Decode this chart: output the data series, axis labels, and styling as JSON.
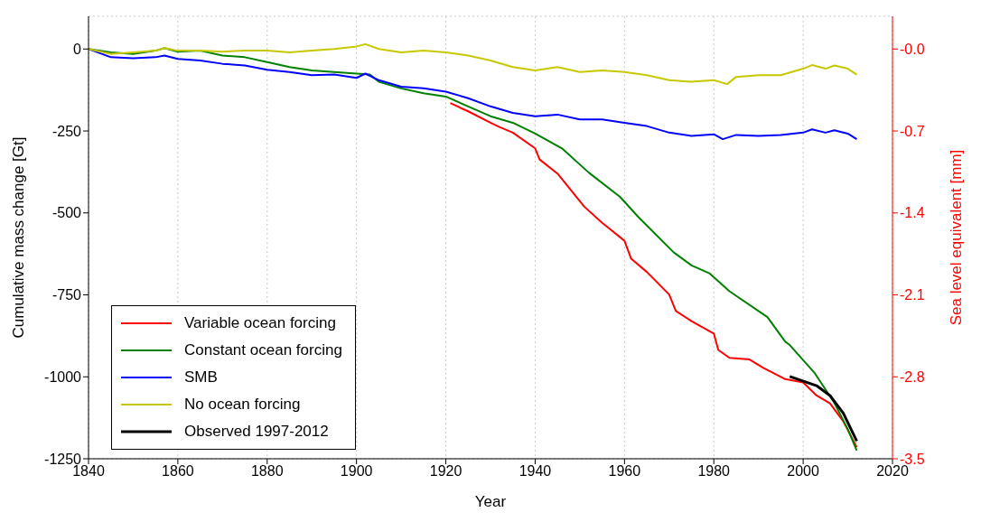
{
  "chart_data": {
    "type": "line",
    "xlabel": "Year",
    "ylabel": "Cumulative mass change [Gt]",
    "y2label": "Sea level equivalent [mm]",
    "xlim": [
      1840,
      2020
    ],
    "xticks": [
      1840,
      1860,
      1880,
      1900,
      1920,
      1940,
      1960,
      1980,
      2000,
      2020
    ],
    "ylim": [
      -1250,
      100
    ],
    "yticks": [
      -1250,
      -1000,
      -750,
      -500,
      -250,
      0
    ],
    "y2lim": [
      -3.5,
      0.28
    ],
    "y2ticks": [
      -3.5,
      -2.8,
      -2.1,
      -1.4,
      -0.7,
      {
        "value": 0,
        "label": "-0.0"
      }
    ],
    "grid": true,
    "legend": "bottom left",
    "line_style": "solid",
    "marker": "none",
    "series": [
      {
        "name": "Variable ocean forcing",
        "color": "#ff0000",
        "x": [
          1921,
          1925,
          1930,
          1932,
          1935,
          1940,
          1941,
          1945,
          1951,
          1955,
          1960,
          1961.5,
          1965,
          1970,
          1971.5,
          1975,
          1980,
          1981,
          1983.5,
          1988,
          1991,
          1996,
          2000,
          2003,
          2006,
          2009,
          2012
        ],
        "values": [
          -165,
          -190,
          -225,
          -238,
          -255,
          -303,
          -337,
          -380,
          -481,
          -530,
          -585,
          -640,
          -680,
          -749,
          -799,
          -830,
          -868,
          -918,
          -942,
          -947,
          -972,
          -1007,
          -1017,
          -1057,
          -1081,
          -1136,
          -1215
        ]
      },
      {
        "name": "Constant ocean forcing",
        "color": "#008000",
        "x": [
          1840,
          1845,
          1850,
          1855,
          1857,
          1860,
          1865,
          1870,
          1875,
          1880,
          1885,
          1890,
          1895,
          1900,
          1903,
          1905,
          1910,
          1915,
          1920,
          1925,
          1930,
          1935,
          1940,
          1946,
          1952,
          1959,
          1963,
          1971,
          1975,
          1979,
          1983.5,
          1992,
          1996,
          1997,
          2002.5,
          2007,
          2010,
          2012
        ],
        "values": [
          0,
          -10,
          -15,
          -5,
          3,
          -8,
          -5,
          -20,
          -25,
          -40,
          -55,
          -65,
          -70,
          -75,
          -78,
          -100,
          -120,
          -135,
          -145,
          -175,
          -205,
          -225,
          -258,
          -303,
          -377,
          -451,
          -511,
          -620,
          -660,
          -684,
          -739,
          -818,
          -893,
          -903,
          -987,
          -1080,
          -1160,
          -1225
        ]
      },
      {
        "name": "SMB",
        "color": "#0000ff",
        "x": [
          1840,
          1845,
          1850,
          1855,
          1857,
          1860,
          1865,
          1870,
          1875,
          1880,
          1885,
          1890,
          1895,
          1900,
          1902,
          1905,
          1910,
          1915,
          1920,
          1925,
          1930,
          1935,
          1940,
          1945,
          1950,
          1955,
          1960,
          1965,
          1970,
          1975,
          1980,
          1982,
          1985,
          1990,
          1995,
          2000,
          2002,
          2005,
          2007,
          2010,
          2012
        ],
        "values": [
          0,
          -25,
          -28,
          -25,
          -20,
          -30,
          -35,
          -45,
          -50,
          -63,
          -70,
          -80,
          -78,
          -88,
          -75,
          -95,
          -115,
          -120,
          -130,
          -150,
          -175,
          -195,
          -205,
          -200,
          -215,
          -215,
          -225,
          -235,
          -255,
          -265,
          -260,
          -275,
          -262,
          -265,
          -262,
          -255,
          -245,
          -255,
          -248,
          -258,
          -275
        ]
      },
      {
        "name": "No ocean forcing",
        "color": "#c8c800",
        "x": [
          1840,
          1845,
          1850,
          1855,
          1857,
          1860,
          1865,
          1870,
          1875,
          1880,
          1885,
          1890,
          1895,
          1900,
          1902,
          1905,
          1910,
          1915,
          1920,
          1925,
          1930,
          1935,
          1940,
          1945,
          1950,
          1955,
          1960,
          1965,
          1970,
          1975,
          1980,
          1983,
          1985,
          1990,
          1995,
          2000,
          2002,
          2005,
          2007,
          2010,
          2012
        ],
        "values": [
          0,
          -15,
          -10,
          -5,
          3,
          -5,
          -5,
          -8,
          -5,
          -5,
          -10,
          -5,
          0,
          8,
          15,
          0,
          -10,
          -5,
          -10,
          -20,
          -35,
          -55,
          -65,
          -55,
          -70,
          -65,
          -70,
          -80,
          -95,
          -100,
          -95,
          -107,
          -85,
          -80,
          -80,
          -60,
          -49,
          -60,
          -50,
          -60,
          -78
        ]
      },
      {
        "name": "Observed 1997-2012",
        "color": "#000000",
        "x": [
          1997,
          2003,
          2006,
          2009,
          2012
        ],
        "values": [
          -999,
          -1027,
          -1057,
          -1111,
          -1196
        ]
      }
    ]
  }
}
